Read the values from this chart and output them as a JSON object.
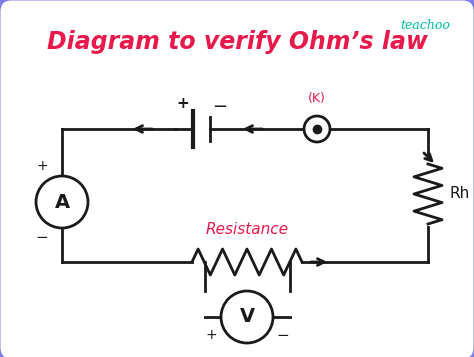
{
  "title": "Diagram to verify Ohm’s law",
  "title_color": "#e8194b",
  "title_fontsize": 17,
  "brand": "teachoo",
  "brand_color": "#00bfa5",
  "bg_color": "#ffffff",
  "border_color": "#7b7bea",
  "bg_outer": "#c8c8f0",
  "circuit_color": "#1a1a1a",
  "label_color": "#e8194b",
  "rh_label": "Rh",
  "k_label": "(K)",
  "resistance_label": "Resistance"
}
